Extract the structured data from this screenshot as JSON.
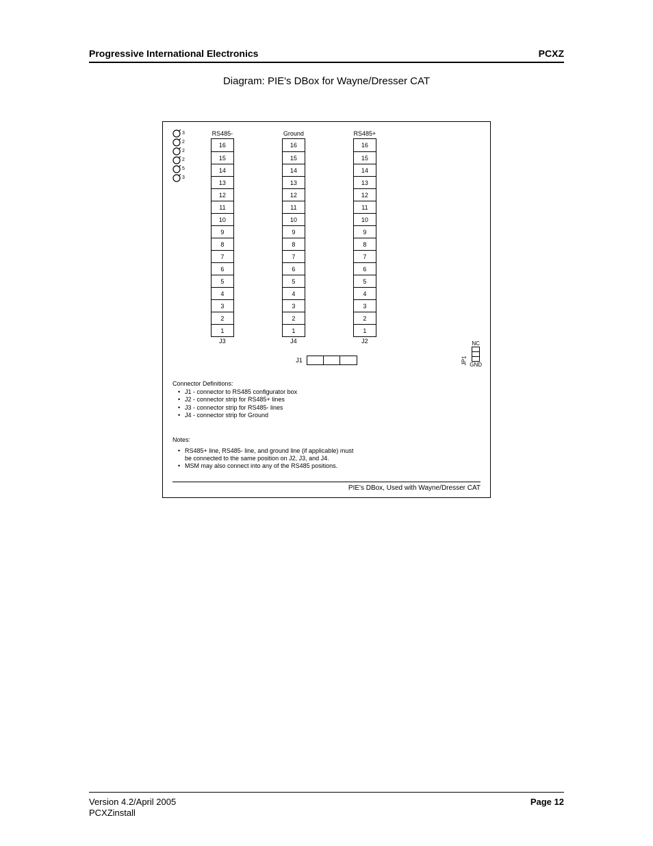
{
  "header": {
    "left": "Progressive International Electronics",
    "right": "PCXZ"
  },
  "title": "Diagram:  PIE's DBox for Wayne/Dresser CAT",
  "indicators": [
    "3",
    "2",
    "2",
    "2",
    "5",
    "3"
  ],
  "columns": [
    {
      "head": "RS485-",
      "label": "J3"
    },
    {
      "head": "Ground",
      "label": "J4"
    },
    {
      "head": "RS485+",
      "label": "J2"
    }
  ],
  "pins": [
    "16",
    "15",
    "14",
    "13",
    "12",
    "11",
    "10",
    "9",
    "8",
    "7",
    "6",
    "5",
    "4",
    "3",
    "2",
    "1"
  ],
  "j1_label": "J1",
  "jp1": {
    "top": "NC",
    "side": "JP1",
    "bottom": "GND"
  },
  "defs": {
    "title": "Connector Definitions:",
    "items": [
      "J1 - connector to RS485 configurator box",
      "J2 - connector strip for RS485+ lines",
      "J3 - connector strip for RS485- lines",
      "J4 - connector strip for Ground"
    ]
  },
  "notes": {
    "title": "Notes:",
    "items": [
      "RS485+ line, RS485- line, and ground line (if applicable) must be connected to the same position on J2, J3, and J4.",
      "MSM may also connect into any of the RS485 positions."
    ]
  },
  "box_footer": "PIE's DBox, Used with Wayne/Dresser CAT",
  "footer": {
    "version": "Version 4.2/April 2005",
    "doc": "PCXZinstall",
    "page": "Page 12"
  }
}
